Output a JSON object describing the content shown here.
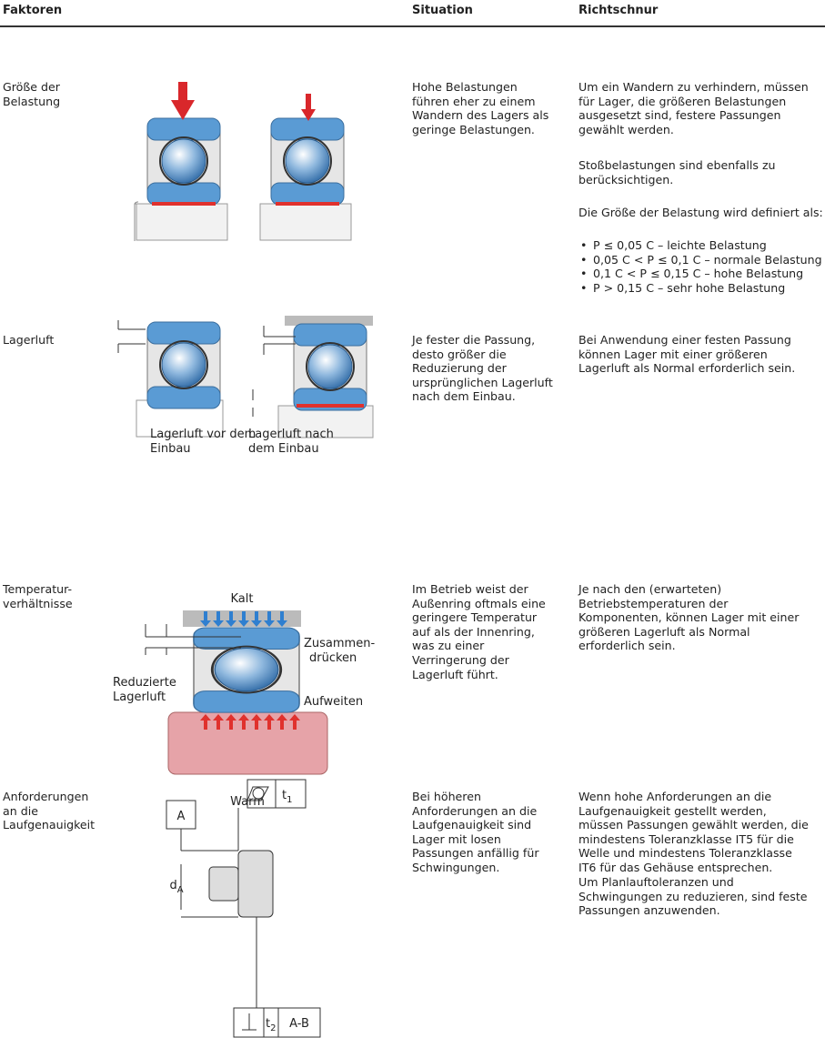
{
  "header": [
    "Faktoren",
    "Situation",
    "Richtschnur"
  ],
  "rows": [
    {
      "factor": [
        "Größe der",
        "Belastung"
      ],
      "situation": [
        "Hohe Belastungen",
        "führen eher zu einem",
        "Wandern des Lagers als",
        "geringe Belastungen."
      ],
      "guidance": [
        [
          "Um ein Wandern zu verhindern, müssen",
          "für Lager, die größeren Belastungen",
          "ausgesetzt sind, festere Passungen",
          "gewählt werden."
        ],
        [
          "Stoßbelastungen sind ebenfalls zu",
          "berücksichtigen."
        ],
        [
          "Die Größe der Belastung wird definiert als:"
        ]
      ],
      "bullets": [
        "P ≤ 0,05 C – leichte Belastung",
        "0,05 C < P ≤ 0,1 C – normale Belastung",
        "0,1 C < P ≤ 0,15 C – hohe Belastung",
        "P > 0,15 C – sehr hohe Belastung"
      ]
    },
    {
      "factor": [
        "Lagerluft"
      ],
      "figure_labels": [
        [
          "Lagerluft vor dem",
          "Einbau"
        ],
        [
          "Lagerluft nach",
          "dem Einbau"
        ]
      ],
      "situation": [
        "Je fester die Passung,",
        "desto größer die",
        "Reduzierung der",
        "ursprünglichen Lagerluft",
        "nach dem Einbau."
      ],
      "guidance": [
        [
          "Bei Anwendung einer festen Passung",
          "können Lager mit einer größeren",
          "Lagerluft als Normal erforderlich sein."
        ]
      ]
    },
    {
      "factor": [
        "Temperatur-",
        "verhältnisse"
      ],
      "figure_labels": [
        "Kalt",
        [
          "Zusammen-",
          "drücken"
        ],
        [
          "Reduzierte",
          "Lagerluft"
        ],
        "Aufweiten",
        "Warm"
      ],
      "situation": [
        "Im Betrieb weist der",
        "Außenring oftmals eine",
        "geringere Temperatur",
        "auf als der Innenring,",
        "was zu einer",
        "Verringerung der",
        "Lagerluft führt."
      ],
      "guidance": [
        [
          "Je nach den (erwarteten)",
          "Betriebstemperaturen der",
          "Komponenten, können Lager mit einer",
          "größeren Lagerluft als Normal",
          "erforderlich sein."
        ]
      ]
    },
    {
      "factor": [
        "Anforderungen",
        "an die",
        "Laufgenauigkeit"
      ],
      "figure_labels": {
        "datum": "A",
        "diameter": {
          "main": "d",
          "sub": "A"
        },
        "tolerance_1": {
          "main": "t",
          "sub": "1"
        },
        "tolerance_2": {
          "main": "t",
          "sub": "2"
        },
        "reference": "A-B"
      },
      "situation": [
        "Bei höheren",
        "Anforderungen an die",
        "Laufgenauigkeit sind",
        "Lager mit losen",
        "Passungen anfällig für",
        "Schwingungen."
      ],
      "guidance": [
        [
          "Wenn hohe Anforderungen an die",
          "Laufgenauigkeit gestellt werden,",
          "müssen Passungen gewählt werden, die",
          "mindestens Toleranzklasse IT5 für die",
          "Welle und mindestens Toleranzklasse",
          "IT6 für das Gehäuse entsprechen."
        ],
        [
          "Um Planlauftoleranzen und",
          "Schwingungen zu reduzieren, sind feste",
          "Passungen anzuwenden."
        ]
      ]
    }
  ]
}
